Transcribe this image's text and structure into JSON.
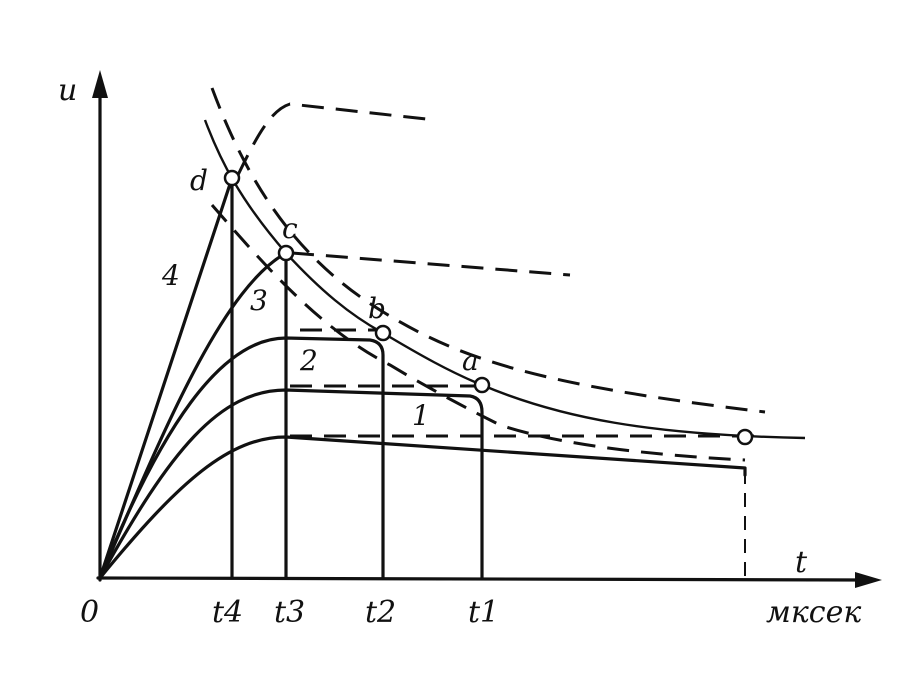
{
  "axes": {
    "y_label": "u",
    "x_label": "t",
    "origin_label": "0",
    "x_unit": "мксек",
    "x_ticks": [
      "t4",
      "t3",
      "t2",
      "t1"
    ]
  },
  "points": [
    "d",
    "c",
    "b",
    "a"
  ],
  "curve_labels": [
    "4",
    "3",
    "2",
    "1"
  ]
}
